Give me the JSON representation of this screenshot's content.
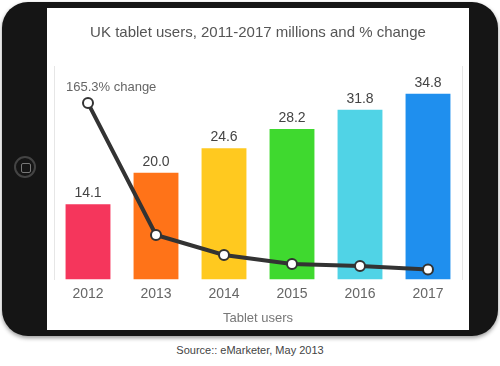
{
  "chart_data": {
    "type": "bar",
    "title": "UK tablet users, 2011-2017 millions and % change",
    "x_label": "Tablet users",
    "source": "Source:: eMarketer, May 2013",
    "categories": [
      "2012",
      "2013",
      "2014",
      "2015",
      "2016",
      "2017"
    ],
    "series": [
      {
        "type": "bar",
        "colors": [
          "#f5365c",
          "#ff7318",
          "#ffc91f",
          "#3fd92f",
          "#50d3e6",
          "#1f8fee"
        ],
        "values": [
          14.1,
          20.0,
          24.6,
          28.2,
          31.8,
          34.8
        ],
        "value_labels": [
          "14.1",
          "20.0",
          "24.6",
          "28.2",
          "31.8",
          "34.8"
        ]
      },
      {
        "type": "line",
        "color": "#333333",
        "marker": "circle",
        "line_style": "solid",
        "axis": "y2",
        "values": [
          165.3,
          41.8,
          23.0,
          14.6,
          12.8,
          9.4
        ]
      }
    ],
    "annotations": [
      {
        "text": "165.3% change",
        "x": "2012",
        "y": 165.3,
        "axis": "y2"
      }
    ],
    "ylim": [
      0,
      40
    ],
    "y2lim": [
      0,
      200
    ],
    "grid": false,
    "data_labels": true,
    "tick_labels": "x"
  }
}
